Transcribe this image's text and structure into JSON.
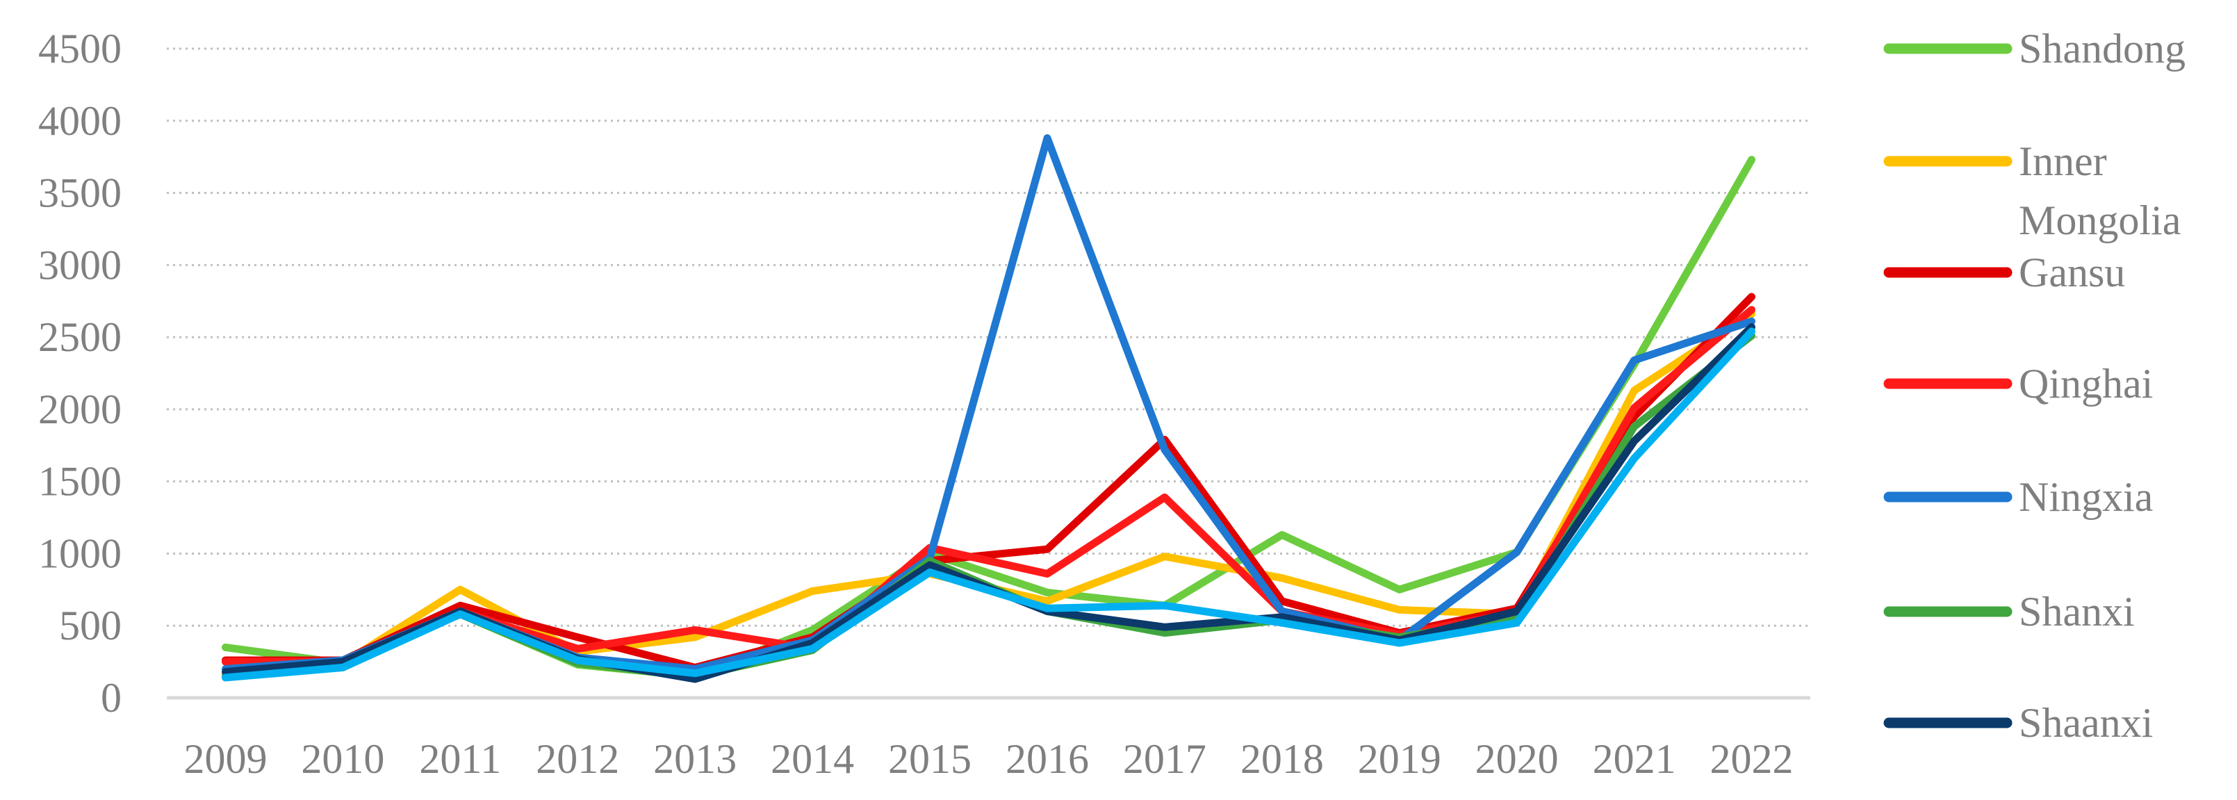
{
  "chart_data": {
    "type": "line",
    "title": "",
    "xlabel": "",
    "ylabel": "",
    "ylim": [
      0,
      4500
    ],
    "yticks": [
      0,
      500,
      1000,
      1500,
      2000,
      2500,
      3000,
      3500,
      4000,
      4500
    ],
    "grid": "horizontal dotted",
    "legend_position": "right",
    "categories": [
      "2009",
      "2010",
      "2011",
      "2012",
      "2013",
      "2014",
      "2015",
      "2016",
      "2017",
      "2018",
      "2019",
      "2020",
      "2021",
      "2022"
    ],
    "series": [
      {
        "name": "Shandong",
        "color": "#6ccc3f",
        "values": [
          350,
          240,
          580,
          230,
          150,
          470,
          1000,
          730,
          640,
          1130,
          750,
          1010,
          2310,
          3730
        ]
      },
      {
        "name": "Inner Mongolia",
        "color": "#ffc000",
        "values": [
          160,
          240,
          750,
          320,
          420,
          740,
          860,
          670,
          980,
          830,
          610,
          580,
          2130,
          2660
        ]
      },
      {
        "name": "Gansu",
        "color": "#e00000",
        "values": [
          260,
          260,
          640,
          420,
          210,
          420,
          950,
          1030,
          1790,
          670,
          450,
          620,
          1950,
          2780
        ]
      },
      {
        "name": "Qinghai",
        "color": "#ff1a1a",
        "values": [
          250,
          250,
          600,
          340,
          470,
          340,
          1040,
          860,
          1390,
          600,
          440,
          590,
          2010,
          2690
        ]
      },
      {
        "name": "Ningxia",
        "color": "#1f78d1",
        "values": [
          200,
          260,
          600,
          280,
          200,
          400,
          970,
          3880,
          1720,
          600,
          400,
          1010,
          2340,
          2610
        ]
      },
      {
        "name": "Shanxi",
        "color": "#3fa53f",
        "values": [
          150,
          230,
          580,
          240,
          150,
          330,
          950,
          600,
          450,
          540,
          420,
          550,
          1880,
          2510
        ]
      },
      {
        "name": "Shaanxi",
        "color": "#0b3a6b",
        "values": [
          180,
          250,
          600,
          270,
          130,
          380,
          920,
          600,
          490,
          560,
          400,
          600,
          1780,
          2570
        ]
      },
      {
        "name": "",
        "color": "#00b0f0",
        "values": [
          140,
          210,
          580,
          260,
          170,
          340,
          870,
          620,
          640,
          520,
          380,
          520,
          1660,
          2540
        ]
      }
    ]
  }
}
